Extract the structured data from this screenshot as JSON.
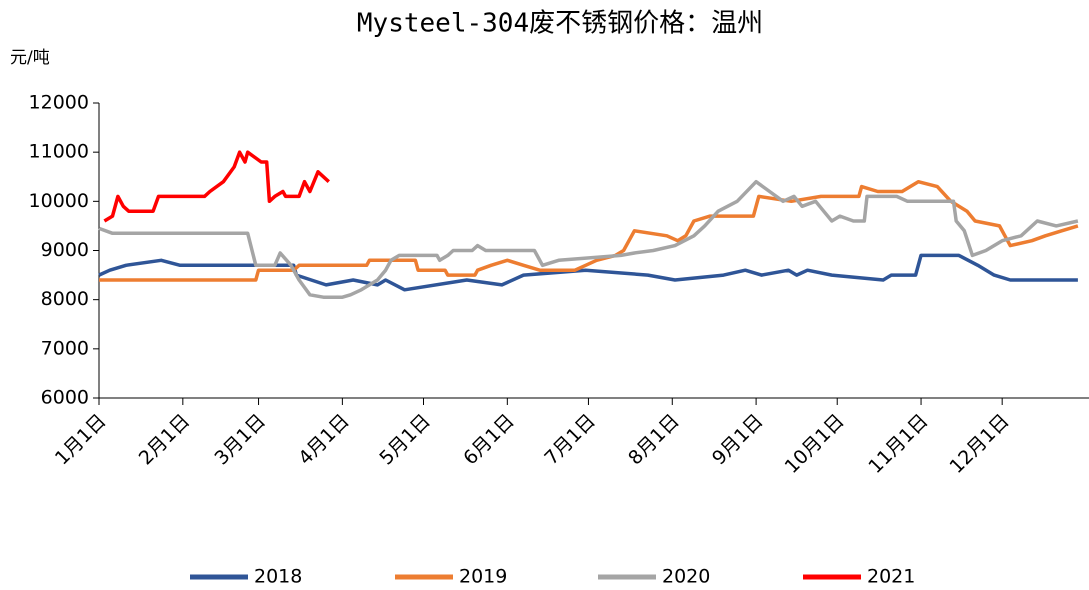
{
  "chart_data": {
    "type": "line",
    "title": "Mysteel-304废不锈钢价格：温州",
    "y_label": "元/吨",
    "xlim": [
      0,
      365
    ],
    "xticks": [
      {
        "value": 0,
        "label": "1月1日"
      },
      {
        "value": 31,
        "label": "2月1日"
      },
      {
        "value": 59,
        "label": "3月1日"
      },
      {
        "value": 90,
        "label": "4月1日"
      },
      {
        "value": 120,
        "label": "5月1日"
      },
      {
        "value": 151,
        "label": "6月1日"
      },
      {
        "value": 181,
        "label": "7月1日"
      },
      {
        "value": 212,
        "label": "8月1日"
      },
      {
        "value": 243,
        "label": "9月1日"
      },
      {
        "value": 273,
        "label": "10月1日"
      },
      {
        "value": 304,
        "label": "11月1日"
      },
      {
        "value": 334,
        "label": "12月1日"
      }
    ],
    "ylim": [
      6000,
      12000
    ],
    "yticks": [
      6000,
      7000,
      8000,
      9000,
      10000,
      11000,
      12000
    ],
    "legend": "bottom",
    "series": [
      {
        "name": "2018",
        "color": "#2f5597",
        "x": [
          0,
          4,
          10,
          23,
          30,
          72,
          73,
          84,
          94,
          103,
          106,
          113,
          136,
          149,
          157,
          180,
          203,
          213,
          231,
          239,
          245,
          255,
          258,
          262,
          271,
          290,
          293,
          302,
          304,
          318,
          325,
          331,
          337,
          362
        ],
        "values": [
          8500,
          8600,
          8700,
          8800,
          8700,
          8700,
          8500,
          8300,
          8400,
          8300,
          8400,
          8200,
          8400,
          8300,
          8500,
          8600,
          8500,
          8400,
          8500,
          8600,
          8500,
          8600,
          8500,
          8600,
          8500,
          8400,
          8500,
          8500,
          8900,
          8900,
          8700,
          8500,
          8400,
          8400
        ]
      },
      {
        "name": "2019",
        "color": "#ed7d31",
        "x": [
          0,
          58,
          59,
          72,
          74,
          99,
          100,
          117,
          118,
          128,
          129,
          139,
          140,
          145,
          151,
          157,
          163,
          176,
          180,
          184,
          191,
          194,
          198,
          210,
          214,
          217,
          220,
          226,
          242,
          244,
          256,
          267,
          281,
          282,
          288,
          297,
          303,
          310,
          315,
          321,
          324,
          333,
          335,
          337,
          345,
          350,
          356,
          362
        ],
        "values": [
          8400,
          8400,
          8600,
          8600,
          8700,
          8700,
          8800,
          8800,
          8600,
          8600,
          8500,
          8500,
          8600,
          8700,
          8800,
          8700,
          8600,
          8600,
          8700,
          8800,
          8900,
          9000,
          9400,
          9300,
          9200,
          9300,
          9600,
          9700,
          9700,
          10100,
          10000,
          10100,
          10100,
          10300,
          10200,
          10200,
          10400,
          10300,
          10000,
          9800,
          9600,
          9500,
          9300,
          9100,
          9200,
          9300,
          9400,
          9500
        ]
      },
      {
        "name": "2020",
        "color": "#a5a5a5",
        "x": [
          0,
          5,
          55,
          58,
          65,
          67,
          71,
          74,
          78,
          83,
          90,
          93,
          97,
          103,
          106,
          108,
          111,
          125,
          126,
          129,
          131,
          138,
          140,
          143,
          161,
          162,
          164,
          170,
          193,
          198,
          205,
          213,
          220,
          224,
          229,
          236,
          243,
          248,
          253,
          257,
          260,
          265,
          268,
          271,
          274,
          279,
          283,
          284,
          295,
          299,
          316,
          317,
          320,
          323,
          328,
          334,
          341,
          347,
          354,
          362
        ],
        "values": [
          9450,
          9350,
          9350,
          8700,
          8700,
          8950,
          8700,
          8400,
          8100,
          8050,
          8050,
          8100,
          8200,
          8400,
          8600,
          8800,
          8900,
          8900,
          8800,
          8900,
          9000,
          9000,
          9100,
          9000,
          9000,
          8900,
          8700,
          8800,
          8900,
          8950,
          9000,
          9100,
          9300,
          9500,
          9800,
          10000,
          10400,
          10200,
          10000,
          10100,
          9900,
          10000,
          9800,
          9600,
          9700,
          9600,
          9600,
          10100,
          10100,
          10000,
          10000,
          9600,
          9400,
          8900,
          9000,
          9200,
          9300,
          9600,
          9500,
          9600
        ]
      },
      {
        "name": "2021",
        "color": "#ff0000",
        "x": [
          2,
          5,
          7,
          9,
          11,
          20,
          22,
          39,
          41,
          46,
          50,
          52,
          54,
          55,
          60,
          62,
          63,
          65,
          68,
          69,
          74,
          76,
          78,
          81,
          85
        ],
        "values": [
          9600,
          9700,
          10100,
          9900,
          9800,
          9800,
          10100,
          10100,
          10200,
          10400,
          10700,
          11000,
          10800,
          11000,
          10800,
          10800,
          10000,
          10100,
          10200,
          10100,
          10100,
          10400,
          10200,
          10600,
          10400
        ]
      }
    ]
  }
}
